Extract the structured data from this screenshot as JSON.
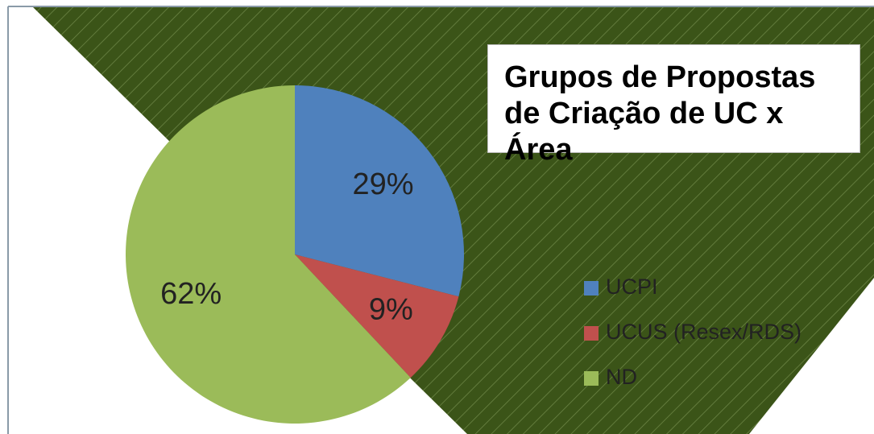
{
  "chart_data": {
    "type": "pie",
    "title": "Grupos de Propostas de Criação de UC x Área",
    "categories": [
      "UCPI",
      "UCUS (Resex/RDS)",
      "ND"
    ],
    "values": [
      29,
      9,
      62
    ],
    "value_labels": [
      "29%",
      "9%",
      "62%"
    ],
    "colors": [
      "#4f81bd",
      "#c0504d",
      "#9bbb59"
    ],
    "legend": "right"
  }
}
